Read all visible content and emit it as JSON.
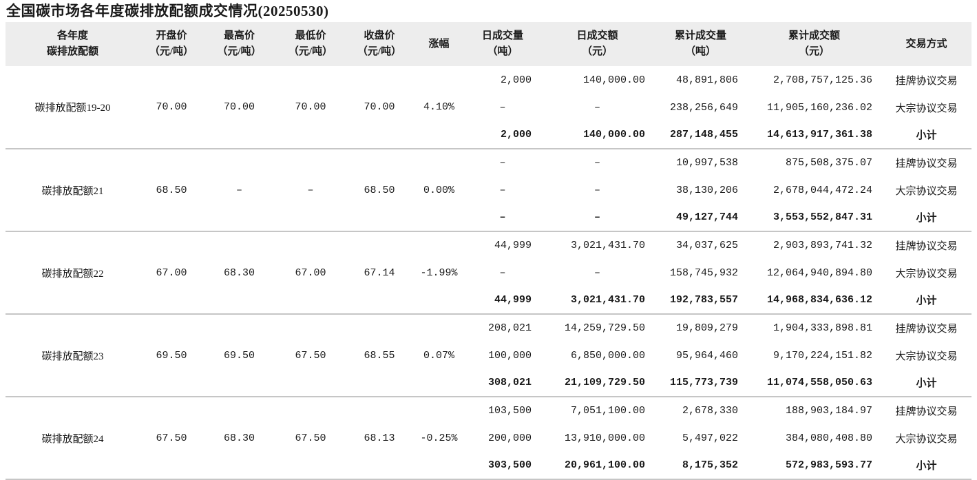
{
  "title": "全国碳市场各年度碳排放配额成交情况(20250530)",
  "empty_placeholder": "–",
  "colors": {
    "header_bg": "#ededed",
    "separator": "#c6c6c6",
    "text": "#1a1a1a"
  },
  "table": {
    "headers": [
      {
        "line1": "各年度",
        "line2": "碳排放配额"
      },
      {
        "line1": "开盘价",
        "line2": "（元/吨）"
      },
      {
        "line1": "最高价",
        "line2": "（元/吨）"
      },
      {
        "line1": "最低价",
        "line2": "（元/吨）"
      },
      {
        "line1": "收盘价",
        "line2": "（元/吨）"
      },
      {
        "line1": "涨幅",
        "line2": ""
      },
      {
        "line1": "日成交量",
        "line2": "（吨）"
      },
      {
        "line1": "日成交额",
        "line2": "（元）"
      },
      {
        "line1": "累计成交量",
        "line2": "（吨）"
      },
      {
        "line1": "累计成交额",
        "line2": "（元）"
      },
      {
        "line1": "交易方式",
        "line2": ""
      }
    ],
    "groups": [
      {
        "name": "碳排放配额19-20",
        "open": "70.00",
        "high": "70.00",
        "low": "70.00",
        "close": "70.00",
        "change": "4.10%",
        "rows": [
          {
            "daily_volume": "2,000",
            "daily_amount": "140,000.00",
            "cum_volume": "48,891,806",
            "cum_amount": "2,708,757,125.36",
            "method": "挂牌协议交易"
          },
          {
            "daily_volume": "–",
            "daily_amount": "–",
            "cum_volume": "238,256,649",
            "cum_amount": "11,905,160,236.02",
            "method": "大宗协议交易"
          },
          {
            "daily_volume": "2,000",
            "daily_amount": "140,000.00",
            "cum_volume": "287,148,455",
            "cum_amount": "14,613,917,361.38",
            "method": "小计"
          }
        ]
      },
      {
        "name": "碳排放配额21",
        "open": "68.50",
        "high": "–",
        "low": "–",
        "close": "68.50",
        "change": "0.00%",
        "rows": [
          {
            "daily_volume": "–",
            "daily_amount": "–",
            "cum_volume": "10,997,538",
            "cum_amount": "875,508,375.07",
            "method": "挂牌协议交易"
          },
          {
            "daily_volume": "–",
            "daily_amount": "–",
            "cum_volume": "38,130,206",
            "cum_amount": "2,678,044,472.24",
            "method": "大宗协议交易"
          },
          {
            "daily_volume": "–",
            "daily_amount": "–",
            "cum_volume": "49,127,744",
            "cum_amount": "3,553,552,847.31",
            "method": "小计"
          }
        ]
      },
      {
        "name": "碳排放配额22",
        "open": "67.00",
        "high": "68.30",
        "low": "67.00",
        "close": "67.14",
        "change": "-1.99%",
        "rows": [
          {
            "daily_volume": "44,999",
            "daily_amount": "3,021,431.70",
            "cum_volume": "34,037,625",
            "cum_amount": "2,903,893,741.32",
            "method": "挂牌协议交易"
          },
          {
            "daily_volume": "–",
            "daily_amount": "–",
            "cum_volume": "158,745,932",
            "cum_amount": "12,064,940,894.80",
            "method": "大宗协议交易"
          },
          {
            "daily_volume": "44,999",
            "daily_amount": "3,021,431.70",
            "cum_volume": "192,783,557",
            "cum_amount": "14,968,834,636.12",
            "method": "小计"
          }
        ]
      },
      {
        "name": "碳排放配额23",
        "open": "69.50",
        "high": "69.50",
        "low": "67.50",
        "close": "68.55",
        "change": "0.07%",
        "rows": [
          {
            "daily_volume": "208,021",
            "daily_amount": "14,259,729.50",
            "cum_volume": "19,809,279",
            "cum_amount": "1,904,333,898.81",
            "method": "挂牌协议交易"
          },
          {
            "daily_volume": "100,000",
            "daily_amount": "6,850,000.00",
            "cum_volume": "95,964,460",
            "cum_amount": "9,170,224,151.82",
            "method": "大宗协议交易"
          },
          {
            "daily_volume": "308,021",
            "daily_amount": "21,109,729.50",
            "cum_volume": "115,773,739",
            "cum_amount": "11,074,558,050.63",
            "method": "小计"
          }
        ]
      },
      {
        "name": "碳排放配额24",
        "open": "67.50",
        "high": "68.30",
        "low": "67.50",
        "close": "68.13",
        "change": "-0.25%",
        "rows": [
          {
            "daily_volume": "103,500",
            "daily_amount": "7,051,100.00",
            "cum_volume": "2,678,330",
            "cum_amount": "188,903,184.97",
            "method": "挂牌协议交易"
          },
          {
            "daily_volume": "200,000",
            "daily_amount": "13,910,000.00",
            "cum_volume": "5,497,022",
            "cum_amount": "384,080,408.80",
            "method": "大宗协议交易"
          },
          {
            "daily_volume": "303,500",
            "daily_amount": "20,961,100.00",
            "cum_volume": "8,175,352",
            "cum_amount": "572,983,593.77",
            "method": "小计"
          }
        ]
      }
    ]
  }
}
